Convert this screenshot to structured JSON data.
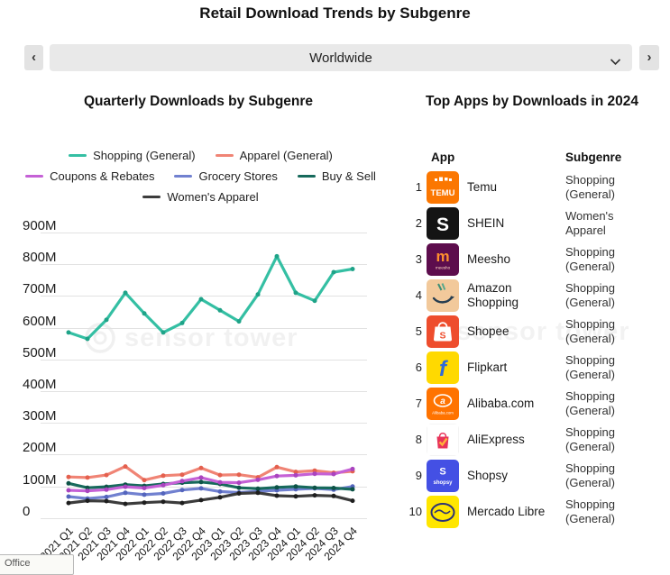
{
  "page_title": "Retail Download Trends by Subgenre",
  "selector": {
    "value": "Worldwide",
    "prev_label": "‹",
    "next_label": "›"
  },
  "left_panel": {
    "title": "Quarterly Downloads by Subgenre",
    "watermark": "sensor tower"
  },
  "right_panel": {
    "title": "Top Apps by Downloads in 2024",
    "watermark": "sensor tower",
    "columns": {
      "app": "App",
      "subgenre": "Subgenre"
    },
    "rows": [
      {
        "rank": 1,
        "name": "Temu",
        "subgenre": "Shopping (General)",
        "icon": "temu"
      },
      {
        "rank": 2,
        "name": "SHEIN",
        "subgenre": "Women's Apparel",
        "icon": "shein"
      },
      {
        "rank": 3,
        "name": "Meesho",
        "subgenre": "Shopping (General)",
        "icon": "meesho"
      },
      {
        "rank": 4,
        "name": "Amazon Shopping",
        "subgenre": "Shopping (General)",
        "icon": "amazon"
      },
      {
        "rank": 5,
        "name": "Shopee",
        "subgenre": "Shopping (General)",
        "icon": "shopee"
      },
      {
        "rank": 6,
        "name": "Flipkart",
        "subgenre": "Shopping (General)",
        "icon": "flipkart"
      },
      {
        "rank": 7,
        "name": "Alibaba.com",
        "subgenre": "Shopping (General)",
        "icon": "alibaba"
      },
      {
        "rank": 8,
        "name": "AliExpress",
        "subgenre": "Shopping (General)",
        "icon": "aliexpress"
      },
      {
        "rank": 9,
        "name": "Shopsy",
        "subgenre": "Shopping (General)",
        "icon": "shopsy"
      },
      {
        "rank": 10,
        "name": "Mercado Libre",
        "subgenre": "Shopping (General)",
        "icon": "mercado-libre"
      }
    ]
  },
  "app_icon_colors": {
    "temu": {
      "bg": "#fb7701",
      "fg": "#ffffff"
    },
    "shein": {
      "bg": "#141414",
      "fg": "#ffffff"
    },
    "meesho": {
      "bg": "#5d0d4d",
      "fg": "#ff8f2e"
    },
    "amazon": {
      "bg": "#f2c99b",
      "fg": "#263d50",
      "accent": "#3e8e75"
    },
    "shopee": {
      "bg": "#ee4d2d",
      "fg": "#ffffff"
    },
    "flipkart": {
      "bg": "#ffd900",
      "fg": "#2f6ad9"
    },
    "alibaba": {
      "bg": "#ff7300",
      "fg": "#ffffff"
    },
    "aliexpress": {
      "bg": "#ffffff",
      "fg": "#e8335a",
      "accent": "#ffb03a"
    },
    "shopsy": {
      "bg": "#4450e4",
      "fg": "#ffffff"
    },
    "mercado-libre": {
      "bg": "#ffe600",
      "fg": "#2d3277"
    }
  },
  "chart_data": {
    "type": "line",
    "title": "Quarterly Downloads by Subgenre",
    "x": [
      "2021 Q1",
      "2021 Q2",
      "2021 Q3",
      "2021 Q4",
      "2022 Q1",
      "2022 Q2",
      "2022 Q3",
      "2022 Q4",
      "2023 Q1",
      "2023 Q2",
      "2023 Q3",
      "2023 Q4",
      "2024 Q1",
      "2024 Q2",
      "2024 Q3",
      "2024 Q4"
    ],
    "unit": "M downloads",
    "ylim": [
      0,
      900
    ],
    "yticks": [
      "900M",
      "800M",
      "700M",
      "600M",
      "500M",
      "400M",
      "300M",
      "200M",
      "100M",
      "0"
    ],
    "grid": true,
    "legend_position": "top",
    "series": [
      {
        "name": "Shopping (General)",
        "color": "#34bfa3",
        "marker": "#1fa388",
        "values": [
          585,
          565,
          625,
          710,
          645,
          585,
          615,
          690,
          655,
          620,
          705,
          825,
          710,
          685,
          775,
          785
        ]
      },
      {
        "name": "Apparel (General)",
        "color": "#f08475",
        "marker": "#e4604e",
        "values": [
          130,
          128,
          136,
          163,
          120,
          134,
          137,
          158,
          136,
          137,
          129,
          161,
          146,
          150,
          143,
          148
        ]
      },
      {
        "name": "Coupons & Rebates",
        "color": "#c561d6",
        "marker": "#a944bf",
        "values": [
          88,
          86,
          90,
          99,
          95,
          104,
          117,
          128,
          113,
          112,
          121,
          133,
          135,
          140,
          139,
          155
        ]
      },
      {
        "name": "Grocery Stores",
        "color": "#7181d0",
        "marker": "#5465bd",
        "values": [
          68,
          62,
          67,
          80,
          74,
          78,
          89,
          94,
          84,
          81,
          85,
          88,
          91,
          94,
          90,
          100
        ]
      },
      {
        "name": "Buy & Sell",
        "color": "#176a5c",
        "marker": "#0d5347",
        "values": [
          110,
          96,
          99,
          106,
          102,
          108,
          112,
          114,
          108,
          96,
          93,
          97,
          100,
          96,
          95,
          91
        ]
      },
      {
        "name": "Women's Apparel",
        "color": "#3c3c3c",
        "marker": "#1e1e1e",
        "values": [
          48,
          55,
          54,
          45,
          49,
          52,
          48,
          57,
          66,
          78,
          80,
          71,
          69,
          72,
          70,
          55
        ]
      }
    ]
  },
  "partial_window": {
    "label": "Office"
  }
}
